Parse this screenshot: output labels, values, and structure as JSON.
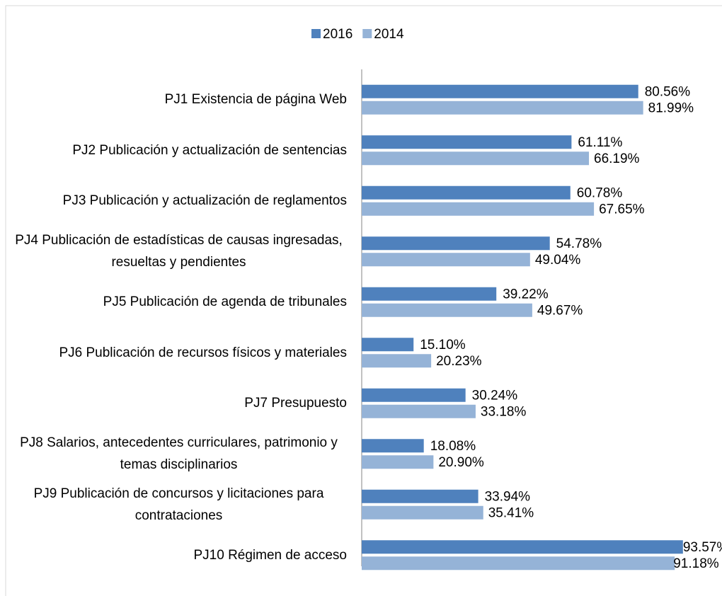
{
  "chart_data": {
    "type": "bar",
    "orientation": "horizontal",
    "categories": [
      "PJ1 Existencia de página Web",
      "PJ2 Publicación y actualización de sentencias",
      "PJ3 Publicación y actualización de reglamentos",
      "PJ4 Publicación de estadísticas de causas ingresadas, resueltas y pendientes",
      "PJ5 Publicación de agenda de tribunales",
      "PJ6 Publicación de recursos físicos y materiales",
      "PJ7 Presupuesto",
      "PJ8 Salarios, antecedentes curriculares, patrimonio y temas disciplinarios",
      "PJ9 Publicación de concursos y licitaciones para contrataciones",
      "PJ10 Régimen de acceso"
    ],
    "series": [
      {
        "name": "2016",
        "color": "#4f81bd",
        "values": [
          80.56,
          61.11,
          60.78,
          54.78,
          39.22,
          15.1,
          30.24,
          18.08,
          33.94,
          93.57
        ],
        "value_labels": [
          "80.56%",
          "61.11%",
          "60.78%",
          "54.78%",
          "39.22%",
          "15.10%",
          "30.24%",
          "18.08%",
          "33.94%",
          "93.57%"
        ]
      },
      {
        "name": "2014",
        "color": "#95b3d7",
        "values": [
          81.99,
          66.19,
          67.65,
          49.04,
          49.67,
          20.23,
          33.18,
          20.9,
          35.41,
          91.18
        ],
        "value_labels": [
          "81.99%",
          "66.19%",
          "67.65%",
          "49.04%",
          "49.67%",
          "20.23%",
          "33.18%",
          "20.90%",
          "35.41%",
          "91.18%"
        ]
      }
    ],
    "xlim": [
      0,
      100
    ],
    "legend": "top"
  }
}
